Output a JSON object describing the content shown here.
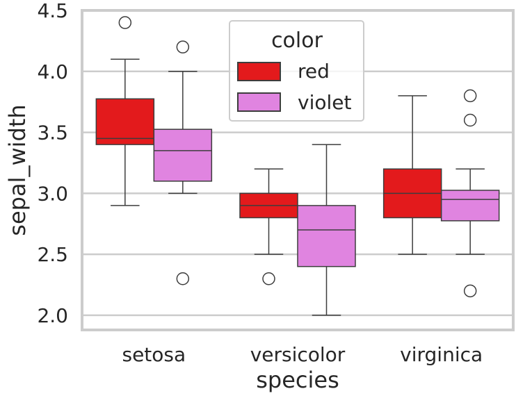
{
  "chart_data": {
    "type": "box",
    "title": "",
    "xlabel": "species",
    "ylabel": "sepal_width",
    "categories": [
      "setosa",
      "versicolor",
      "virginica"
    ],
    "ylim": [
      1.88,
      4.5
    ],
    "yticks": [
      "2.0",
      "2.5",
      "3.0",
      "3.5",
      "4.0",
      "4.5"
    ],
    "grid": true,
    "legend": {
      "title": "color",
      "placement": "top-center"
    },
    "series": [
      {
        "name": "red",
        "color": "#e31a1c",
        "boxes": [
          {
            "category": "setosa",
            "whisker_low": 2.9,
            "q1": 3.4,
            "median": 3.45,
            "q3": 3.775,
            "whisker_high": 4.1,
            "outliers": [
              4.4
            ]
          },
          {
            "category": "versicolor",
            "whisker_low": 2.5,
            "q1": 2.8,
            "median": 2.9,
            "q3": 3.0,
            "whisker_high": 3.2,
            "outliers": [
              2.3
            ]
          },
          {
            "category": "virginica",
            "whisker_low": 2.5,
            "q1": 2.8,
            "median": 3.0,
            "q3": 3.2,
            "whisker_high": 3.8,
            "outliers": []
          }
        ]
      },
      {
        "name": "violet",
        "color": "#e084e0",
        "boxes": [
          {
            "category": "setosa",
            "whisker_low": 3.0,
            "q1": 3.1,
            "median": 3.35,
            "q3": 3.525,
            "whisker_high": 4.0,
            "outliers": [
              4.2,
              2.3
            ]
          },
          {
            "category": "versicolor",
            "whisker_low": 2.0,
            "q1": 2.4,
            "median": 2.7,
            "q3": 2.9,
            "whisker_high": 3.4,
            "outliers": []
          },
          {
            "category": "virginica",
            "whisker_low": 2.5,
            "q1": 2.775,
            "median": 2.95,
            "q3": 3.025,
            "whisker_high": 3.2,
            "outliers": [
              3.8,
              3.6,
              2.2
            ]
          }
        ]
      }
    ]
  }
}
